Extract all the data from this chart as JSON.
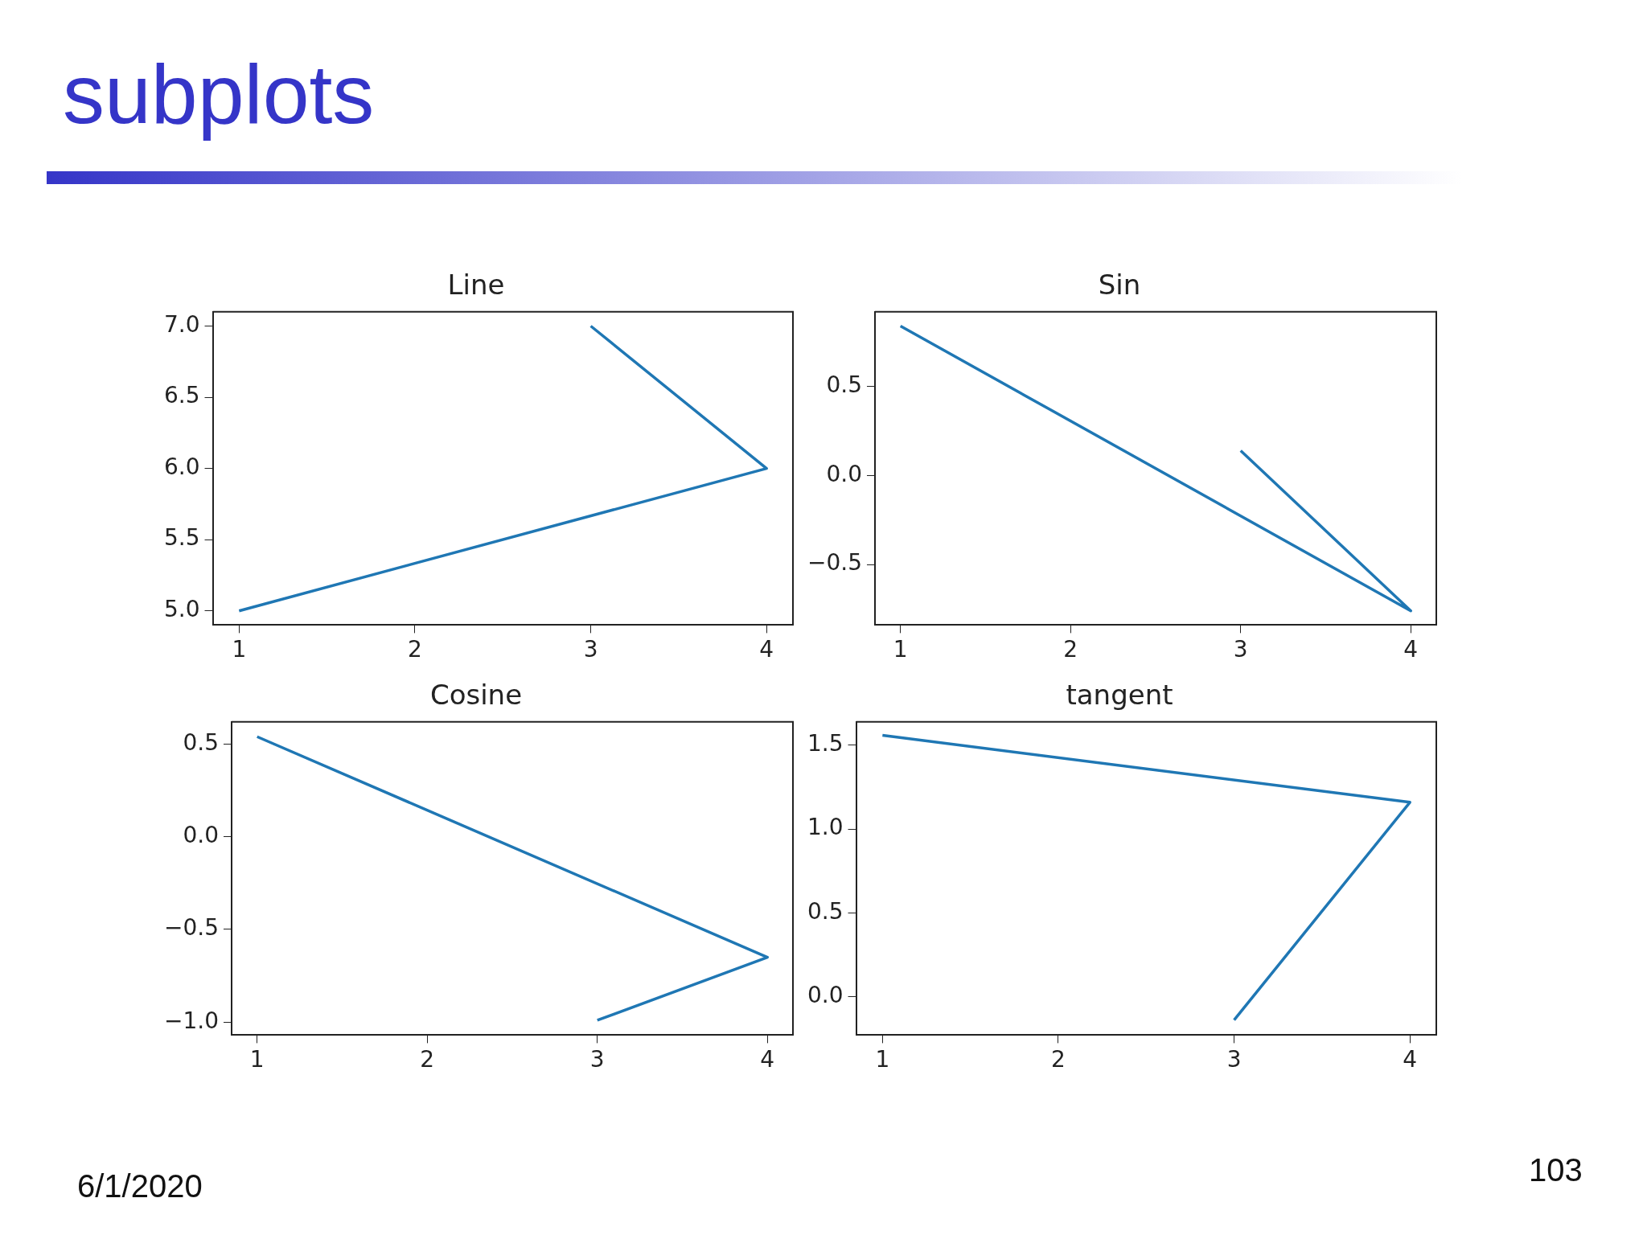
{
  "chart_data": [
    {
      "type": "line",
      "title": "Line",
      "annotations": [
        "subplots",
        "6/1/2020",
        "103"
      ],
      "x": [
        1,
        4,
        3
      ],
      "series": [
        {
          "color": "#1f77b4",
          "values": [
            5.0,
            6.0,
            7.0
          ]
        }
      ],
      "xlim": [
        0.85,
        4.15
      ],
      "xticks": [
        1,
        2,
        3,
        4
      ],
      "ylim": [
        4.9,
        7.1
      ],
      "yticks": [
        {
          "value": 5,
          "label": "5.0"
        },
        {
          "value": 5.5,
          "label": "5.5"
        },
        {
          "value": 6,
          "label": "6.0"
        },
        {
          "value": 6.5,
          "label": "6.5"
        },
        {
          "value": 7,
          "label": "7.0"
        }
      ],
      "grid": false,
      "legend": false,
      "marker": "none",
      "line_style": "solid"
    },
    {
      "type": "line",
      "title": "Sin",
      "x": [
        1,
        4,
        3
      ],
      "series": [
        {
          "color": "#1f77b4",
          "values": [
            0.84,
            -0.76,
            0.14
          ]
        }
      ],
      "xlim": [
        0.85,
        4.15
      ],
      "xticks": [
        1,
        2,
        3,
        4
      ],
      "ylim": [
        -0.84,
        0.92
      ],
      "yticks": [
        {
          "value": -0.5,
          "label": "−0.5"
        },
        {
          "value": 0,
          "label": "0.0"
        },
        {
          "value": 0.5,
          "label": "0.5"
        }
      ],
      "grid": false,
      "legend": false,
      "marker": "none",
      "line_style": "solid"
    },
    {
      "type": "line",
      "title": "Cosine",
      "x": [
        1,
        4,
        3
      ],
      "series": [
        {
          "color": "#1f77b4",
          "values": [
            0.54,
            -0.65,
            -0.99
          ]
        }
      ],
      "xlim": [
        0.85,
        4.15
      ],
      "xticks": [
        1,
        2,
        3,
        4
      ],
      "ylim": [
        -1.07,
        0.62
      ],
      "yticks": [
        {
          "value": -1,
          "label": "−1.0"
        },
        {
          "value": -0.5,
          "label": "−0.5"
        },
        {
          "value": 0,
          "label": "0.0"
        },
        {
          "value": 0.5,
          "label": "0.5"
        }
      ],
      "grid": false,
      "legend": false,
      "marker": "none",
      "line_style": "solid"
    },
    {
      "type": "line",
      "title": "tangent",
      "x": [
        1,
        4,
        3
      ],
      "series": [
        {
          "color": "#1f77b4",
          "values": [
            1.56,
            1.16,
            -0.14
          ]
        }
      ],
      "xlim": [
        0.85,
        4.15
      ],
      "xticks": [
        1,
        2,
        3,
        4
      ],
      "ylim": [
        -0.23,
        1.64
      ],
      "yticks": [
        {
          "value": 0,
          "label": "0.0"
        },
        {
          "value": 0.5,
          "label": "0.5"
        },
        {
          "value": 1,
          "label": "1.0"
        },
        {
          "value": 1.5,
          "label": "1.5"
        }
      ],
      "grid": false,
      "legend": false,
      "marker": "none",
      "line_style": "solid"
    }
  ]
}
